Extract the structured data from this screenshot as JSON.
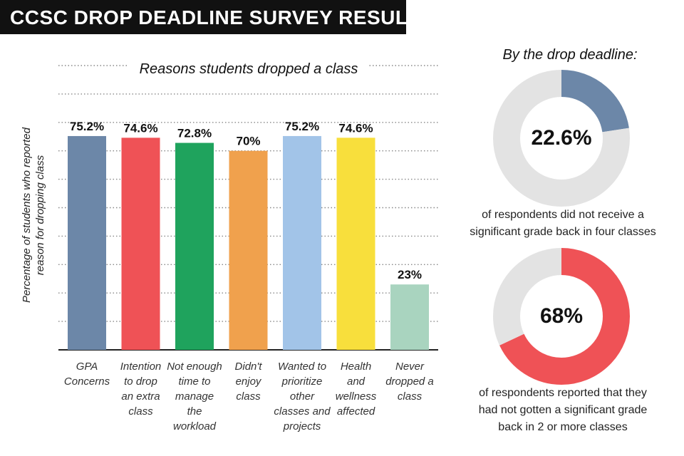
{
  "title": "CCSC DROP DEADLINE SURVEY RESULTS",
  "chart_data": [
    {
      "type": "bar",
      "title": "Reasons students dropped a class",
      "ylabel": "Percentage of students who reported reason for dropping class",
      "xlabel": "",
      "ylim": [
        0,
        100
      ],
      "grid": true,
      "categories": [
        "GPA Concerns",
        "Intention to drop an extra class",
        "Not enough time to manage the workload",
        "Didn't enjoy class",
        "Wanted to prioritize other classes and projects",
        "Health and wellness affected",
        "Never dropped a class"
      ],
      "category_lines": [
        [
          "GPA",
          "Concerns"
        ],
        [
          "Intention",
          "to drop",
          "an extra",
          "class"
        ],
        [
          "Not enough",
          "time to",
          "manage",
          "the",
          "workload"
        ],
        [
          "Didn't",
          "enjoy",
          "class"
        ],
        [
          "Wanted to",
          "prioritize",
          "other",
          "classes and",
          "projects"
        ],
        [
          "Health",
          "and",
          "wellness",
          "affected"
        ],
        [
          "Never",
          "dropped a",
          "class"
        ]
      ],
      "values": [
        75.2,
        74.6,
        72.8,
        70,
        75.2,
        74.6,
        23
      ],
      "value_labels": [
        "75.2%",
        "74.6%",
        "72.8%",
        "70%",
        "75.2%",
        "74.6%",
        "23%"
      ],
      "colors": [
        "#6c87a8",
        "#ef5256",
        "#1fa35d",
        "#f0a14d",
        "#a2c4e8",
        "#f8df3c",
        "#a9d4bf"
      ]
    },
    {
      "type": "pie",
      "title": "By the drop deadline:",
      "values": [
        22.6,
        77.4
      ],
      "value_label": "22.6%",
      "caption": "of respondents did not receive a significant grade back in four classes",
      "caption_lines": [
        "of respondents did not receive a",
        "significant grade back in four classes"
      ],
      "colors": [
        "#6c87a8",
        "#e3e3e3"
      ]
    },
    {
      "type": "pie",
      "values": [
        68,
        32
      ],
      "value_label": "68%",
      "caption": "of respondents reported that they had not gotten a significant grade back in 2 or more classes",
      "caption_lines": [
        "of respondents reported that they",
        "had not gotten a significant grade",
        "back in 2 or more classes"
      ],
      "colors": [
        "#ef5256",
        "#e3e3e3"
      ]
    }
  ]
}
